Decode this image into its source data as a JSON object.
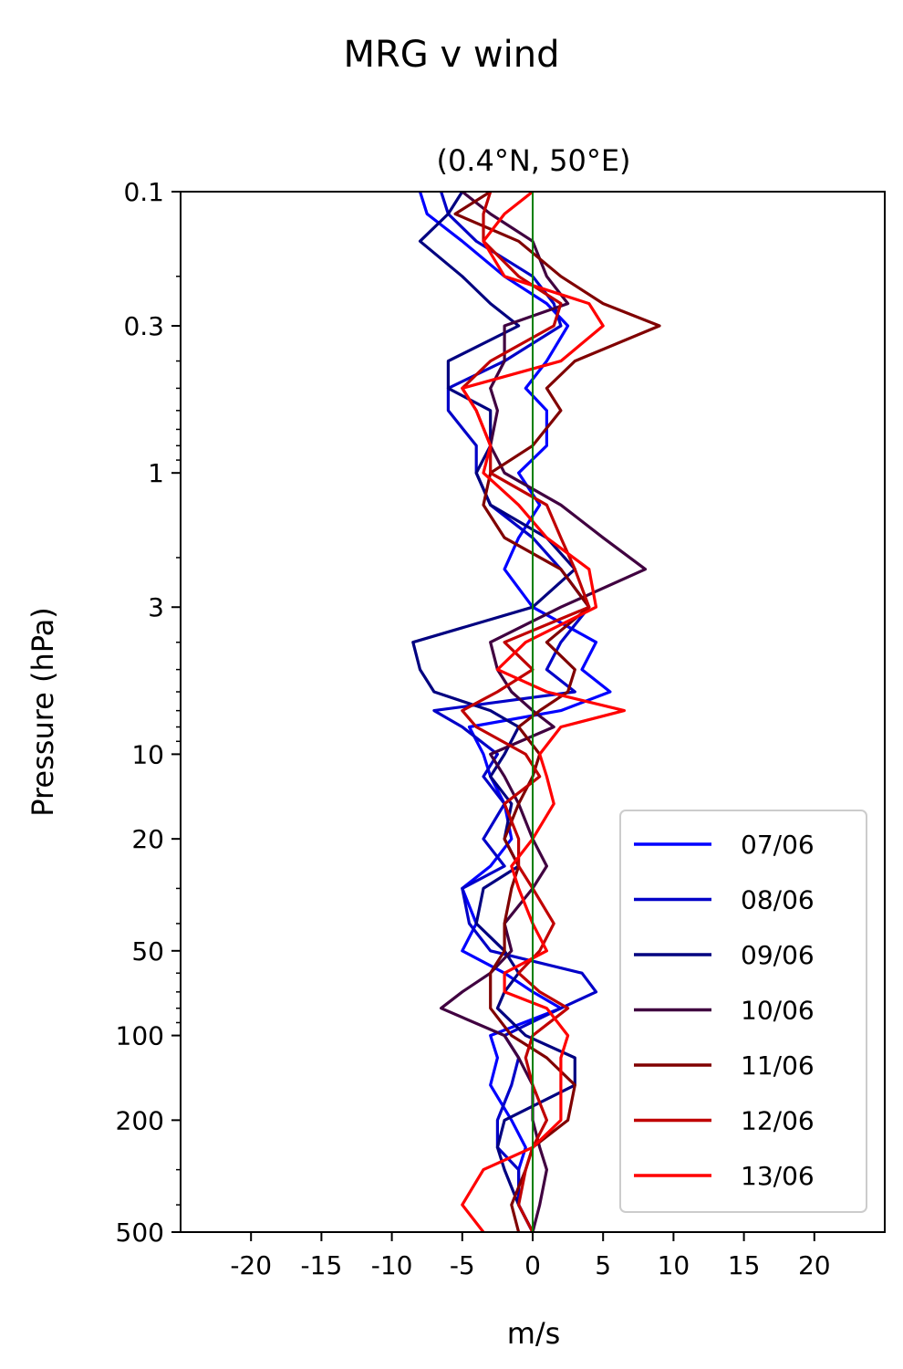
{
  "figure": {
    "suptitle": "MRG v wind",
    "title": "(0.4°N, 50°E)"
  },
  "chart_data": {
    "type": "line",
    "title": "(0.4°N, 50°E)",
    "xlabel": "m/s",
    "ylabel": "Pressure (hPa)",
    "xlim": [
      -25,
      25
    ],
    "ylim": [
      500,
      0.1
    ],
    "yscale": "log",
    "y_inverted": true,
    "x_ticks": [
      -20,
      -15,
      -10,
      -5,
      0,
      5,
      10,
      15,
      20
    ],
    "x_tick_labels": [
      "-20",
      "-15",
      "-10",
      "-5",
      "0",
      "5",
      "10",
      "15",
      "20"
    ],
    "y_ticks": [
      0.1,
      0.3,
      1,
      3,
      10,
      20,
      50,
      100,
      200,
      500
    ],
    "y_tick_labels": [
      "0.1",
      "0.3",
      "1",
      "3",
      "10",
      "20",
      "50",
      "100",
      "200",
      "500"
    ],
    "reference_line": {
      "x": 0,
      "color": "#008000"
    },
    "legend": {
      "position": "lower right"
    },
    "y": [
      0.1,
      0.12,
      0.15,
      0.2,
      0.25,
      0.3,
      0.4,
      0.5,
      0.6,
      0.8,
      1,
      1.3,
      1.7,
      2.2,
      3,
      4,
      5,
      6,
      7,
      8,
      10,
      12,
      15,
      20,
      25,
      30,
      40,
      50,
      60,
      70,
      80,
      100,
      120,
      150,
      200,
      250,
      300,
      400,
      500
    ],
    "series": [
      {
        "name": "07/06",
        "color": "#0000ff",
        "values": [
          -8,
          -7.5,
          -5,
          -2,
          1,
          2.5,
          1,
          -0.5,
          1,
          1,
          -1,
          0.5,
          -1,
          -2,
          0,
          4.5,
          3.5,
          5.5,
          2,
          -4.5,
          -3.5,
          -3,
          -2,
          -1.5,
          -3,
          -5,
          -4,
          -5,
          -2,
          0,
          2,
          -3,
          -2.5,
          -3,
          -1.5,
          -0.5,
          -1,
          -1,
          0
        ]
      },
      {
        "name": "08/06",
        "color": "#0000c8",
        "values": [
          -6.5,
          -6,
          -4,
          0,
          1.5,
          2,
          -2,
          -6,
          -6,
          -4,
          -4,
          -3,
          0,
          2,
          4,
          2,
          1,
          3,
          -7,
          -5,
          -2.5,
          -3.5,
          -2,
          -3.5,
          -2,
          -5,
          -4.5,
          -3,
          3.5,
          4.5,
          2,
          -2,
          -1,
          -1.5,
          -2.5,
          -2.5,
          -1,
          -1,
          0
        ]
      },
      {
        "name": "09/06",
        "color": "#000080",
        "values": [
          -5,
          -6,
          -8,
          -5,
          -3,
          -1,
          -6,
          -6,
          -3,
          -3,
          -4,
          -3,
          1,
          3,
          0,
          -8.5,
          -8,
          -7,
          -3,
          -1,
          -2,
          -3,
          -1.5,
          -2,
          -1,
          -3.5,
          -4,
          -2,
          -1,
          -2,
          -2.5,
          -0.5,
          3,
          3,
          -2,
          -2.5,
          -2,
          -1,
          0
        ]
      },
      {
        "name": "10/06",
        "color": "#400040",
        "values": [
          -5,
          -3,
          0,
          1,
          2.5,
          -2,
          -2,
          -3,
          -2.5,
          -3,
          -2,
          2,
          5,
          8,
          2,
          -3,
          -2.5,
          -1.5,
          0,
          1.5,
          -3,
          -2,
          -1,
          0,
          1,
          0,
          -2,
          -1.5,
          -3,
          -5,
          -6.5,
          -2,
          -1,
          0,
          0,
          0.5,
          1,
          0.5,
          0
        ]
      },
      {
        "name": "11/06",
        "color": "#800000",
        "values": [
          -3,
          -5.5,
          -1,
          2,
          5,
          9,
          3,
          1,
          2,
          0,
          -3,
          -3.5,
          -2,
          2,
          4,
          1,
          3,
          2.5,
          0.5,
          -1,
          0.5,
          0,
          -1,
          -2,
          -1,
          -1.5,
          -2,
          -2,
          -3,
          -3,
          -3,
          -1.5,
          1,
          3,
          2.5,
          0,
          -0.5,
          -1.5,
          -1
        ]
      },
      {
        "name": "12/06",
        "color": "#c00000",
        "values": [
          -3,
          -3.5,
          -3.5,
          -1,
          2,
          1.5,
          -3,
          -5,
          -4,
          -3,
          -3,
          1,
          2,
          3,
          4,
          -2,
          0,
          -2.5,
          -5,
          -4,
          -0.5,
          0.5,
          -2,
          -1,
          -1,
          0,
          1.5,
          0.5,
          -1,
          0.5,
          2.5,
          0,
          -0.5,
          0,
          1,
          0,
          -0.5,
          -1,
          0
        ]
      },
      {
        "name": "13/06",
        "color": "#ff0000",
        "values": [
          0,
          -2,
          -3.5,
          -2,
          4,
          5,
          2,
          -5,
          -4,
          -3,
          -3.5,
          -1,
          1,
          4,
          4.5,
          -0.5,
          -2.5,
          1,
          6.5,
          2,
          0.5,
          1,
          1.5,
          0,
          -1.5,
          -1,
          0,
          1,
          -2,
          -2,
          1,
          2.5,
          2,
          2,
          2,
          0,
          -3.5,
          -5,
          -3.5
        ]
      }
    ]
  }
}
